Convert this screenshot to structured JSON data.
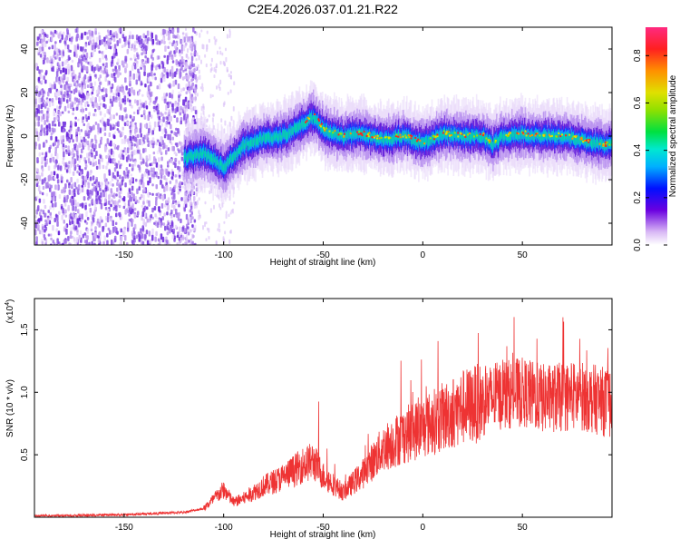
{
  "title": "C2E4.2026.037.01.21.R22",
  "colors": {
    "snr_line": "#ee3333",
    "axis": "#000000",
    "background": "#ffffff"
  },
  "chart_data": [
    {
      "type": "heatmap",
      "name": "spectrogram",
      "xlabel": "Height of straight line (km)",
      "ylabel": "Frequency (Hz)",
      "xlim": [
        -195,
        95
      ],
      "ylim": [
        -50,
        50
      ],
      "xticks": [
        -150,
        -100,
        -50,
        0,
        50
      ],
      "yticks": [
        -40,
        -20,
        0,
        20,
        40
      ],
      "colorbar": {
        "label": "Normalized spectral amplitude",
        "range": [
          0,
          0.92
        ],
        "ticks": [
          0.0,
          0.2,
          0.4,
          0.6,
          0.8
        ],
        "tick_labels": [
          "0.0",
          "0.2",
          "0.4",
          "0.6",
          "0.8"
        ]
      },
      "noise_region_end_km": -120,
      "signal_center_track": {
        "x": [
          -120,
          -110,
          -100,
          -90,
          -80,
          -70,
          -60,
          -55,
          -50,
          -40,
          -30,
          -20,
          -10,
          0,
          10,
          20,
          30,
          35,
          40,
          50,
          60,
          70,
          80,
          90,
          95
        ],
        "y": [
          -10,
          -8,
          -14,
          -4,
          -1,
          0,
          6,
          9,
          3,
          0,
          1,
          -2,
          0,
          -3,
          1,
          0,
          0,
          -4,
          0,
          1,
          0,
          0,
          -2,
          -4,
          -4
        ]
      }
    },
    {
      "type": "line",
      "name": "snr",
      "xlabel": "Height of straight line (km)",
      "ylabel": "SNR (10 * v/v)",
      "y_multiplier_label": "(x10",
      "y_multiplier_exp": "4",
      "xlim": [
        -195,
        95
      ],
      "ylim": [
        0,
        1.75
      ],
      "xticks": [
        -150,
        -100,
        -50,
        0,
        50
      ],
      "yticks": [
        0.5,
        1.0,
        1.5
      ],
      "ytick_labels": [
        "0.5",
        "1.0",
        "1.5"
      ],
      "envelope": {
        "x": [
          -195,
          -150,
          -120,
          -110,
          -100,
          -95,
          -90,
          -80,
          -70,
          -60,
          -55,
          -50,
          -40,
          -30,
          -25,
          -20,
          -10,
          0,
          10,
          20,
          30,
          40,
          50,
          60,
          70,
          80,
          90,
          95
        ],
        "y": [
          0.01,
          0.02,
          0.04,
          0.07,
          0.22,
          0.12,
          0.15,
          0.25,
          0.32,
          0.42,
          0.45,
          0.33,
          0.2,
          0.35,
          0.45,
          0.55,
          0.65,
          0.72,
          0.8,
          0.88,
          0.92,
          0.98,
          1.0,
          0.95,
          0.96,
          0.97,
          0.93,
          0.9
        ]
      }
    }
  ]
}
